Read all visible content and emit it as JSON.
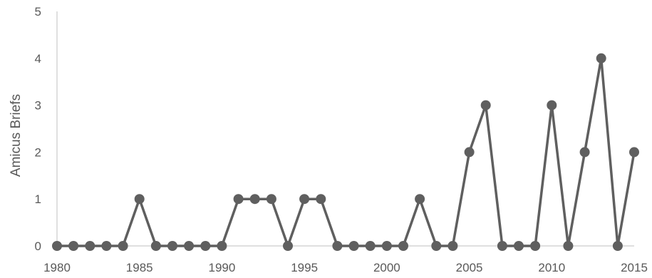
{
  "chart_data": {
    "type": "line",
    "title": "",
    "xlabel": "",
    "ylabel": "Amicus Briefs",
    "x": [
      1980,
      1981,
      1982,
      1983,
      1984,
      1985,
      1986,
      1987,
      1988,
      1989,
      1990,
      1991,
      1992,
      1993,
      1994,
      1995,
      1996,
      1997,
      1998,
      1999,
      2000,
      2001,
      2002,
      2003,
      2004,
      2005,
      2006,
      2007,
      2008,
      2009,
      2010,
      2011,
      2012,
      2013,
      2014,
      2015
    ],
    "series": [
      {
        "values": [
          0,
          0,
          0,
          0,
          0,
          1,
          0,
          0,
          0,
          0,
          0,
          1,
          1,
          1,
          0,
          1,
          1,
          0,
          0,
          0,
          0,
          0,
          1,
          0,
          0,
          2,
          3,
          0,
          0,
          0,
          3,
          0,
          2,
          4,
          0,
          2
        ],
        "color": "#5f5f5f"
      }
    ],
    "xlim": [
      1980,
      2015
    ],
    "ylim": [
      0,
      5
    ],
    "x_ticks": [
      "1980",
      "1985",
      "1990",
      "1995",
      "2000",
      "2005",
      "2010",
      "2015"
    ],
    "y_ticks": [
      "0",
      "1",
      "2",
      "3",
      "4",
      "5"
    ],
    "grid": false,
    "legend": "none"
  }
}
